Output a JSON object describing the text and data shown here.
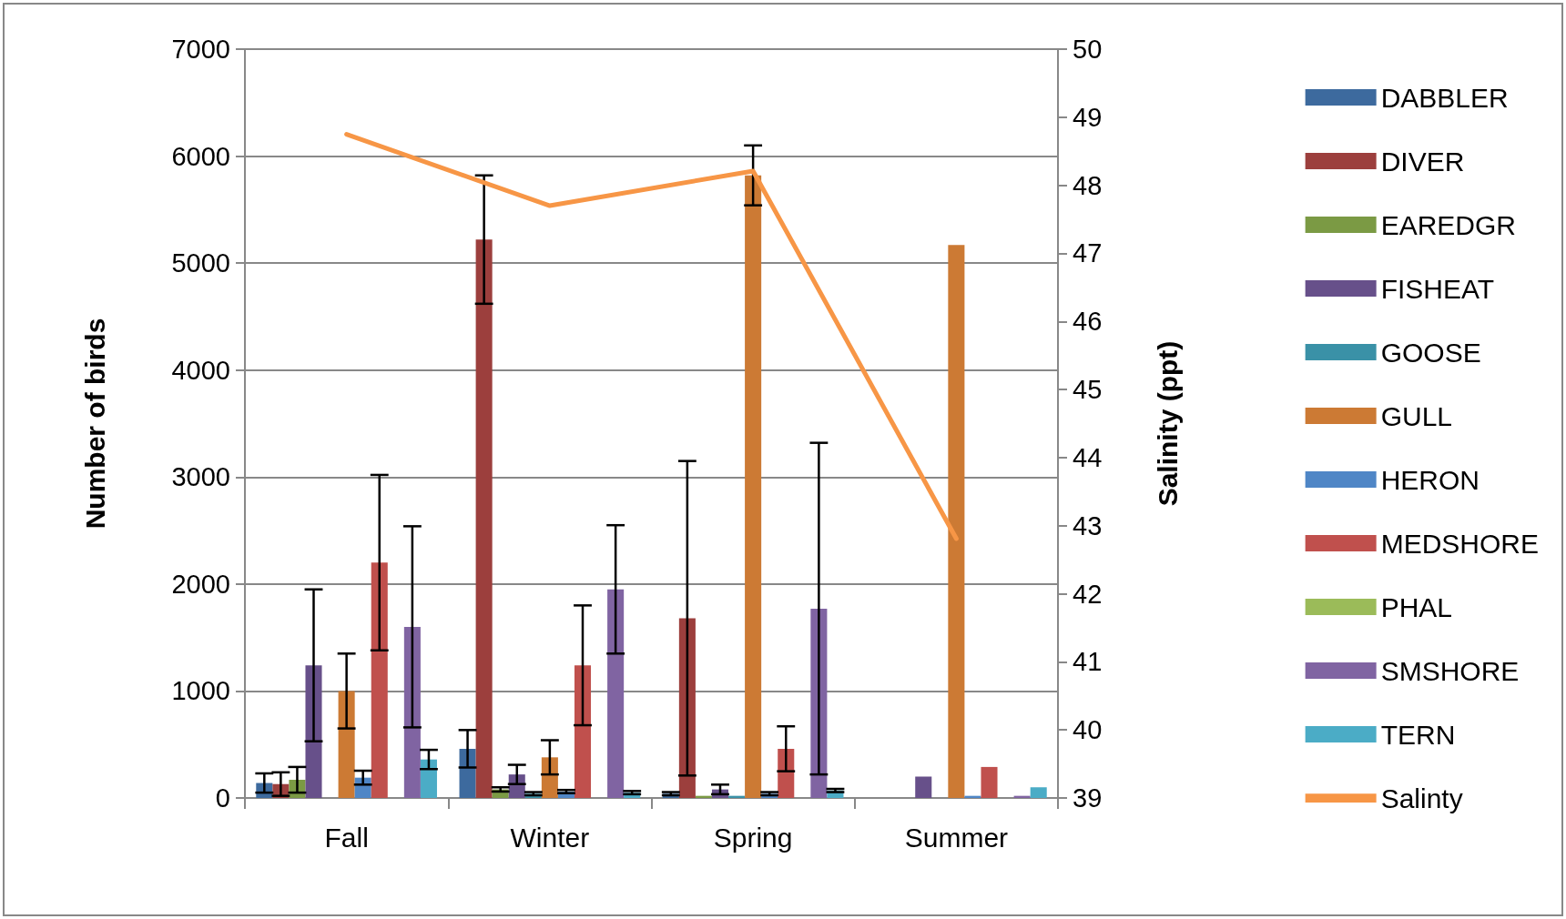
{
  "chart_data": {
    "type": "bar",
    "ylabel": "Number of birds",
    "y2label": "Salinity (ppt)",
    "categories": [
      "Fall",
      "Winter",
      "Spring",
      "Summer"
    ],
    "series": [
      {
        "name": "DABBLER",
        "color": "#3d6a9e",
        "values": [
          140,
          460,
          40,
          0
        ],
        "errors": [
          90,
          175,
          15,
          null
        ]
      },
      {
        "name": "DIVER",
        "color": "#9c3f3d",
        "values": [
          130,
          5220,
          1680,
          0
        ],
        "errors": [
          110,
          600,
          1470,
          null
        ]
      },
      {
        "name": "EAREDGR",
        "color": "#7b9a44",
        "values": [
          170,
          80,
          20,
          0
        ],
        "errors": [
          120,
          20,
          null,
          null
        ]
      },
      {
        "name": "FISHEAT",
        "color": "#67508a",
        "values": [
          1240,
          220,
          80,
          200
        ],
        "errors": [
          710,
          90,
          45,
          null
        ]
      },
      {
        "name": "GOOSE",
        "color": "#3a91a7",
        "values": [
          0,
          40,
          20,
          0
        ],
        "errors": [
          null,
          15,
          null,
          null
        ]
      },
      {
        "name": "GULL",
        "color": "#cc7a34",
        "values": [
          1000,
          380,
          5820,
          5170
        ],
        "errors": [
          350,
          160,
          280,
          null
        ]
      },
      {
        "name": "HERON",
        "color": "#4f86c6",
        "values": [
          190,
          60,
          40,
          20
        ],
        "errors": [
          65,
          15,
          15,
          null
        ]
      },
      {
        "name": "MEDSHORE",
        "color": "#c0504d",
        "values": [
          2200,
          1240,
          460,
          290
        ],
        "errors": [
          820,
          560,
          210,
          null
        ]
      },
      {
        "name": "PHAL",
        "color": "#9bbb59",
        "values": [
          0,
          0,
          0,
          0
        ]
      },
      {
        "name": "SMSHORE",
        "color": "#8064a2",
        "values": [
          1600,
          1950,
          1770,
          20
        ],
        "errors": [
          940,
          600,
          1550,
          null
        ]
      },
      {
        "name": "TERN",
        "color": "#4bacc6",
        "values": [
          360,
          50,
          70,
          100
        ],
        "errors": [
          90,
          15,
          15,
          null
        ]
      },
      {
        "name": "Salinty",
        "type": "line",
        "axis": "y2",
        "color": "#f79646",
        "values": [
          48.75,
          47.7,
          48.21,
          42.81
        ]
      }
    ],
    "ylim": [
      0,
      7000
    ],
    "yticks": [
      0,
      1000,
      2000,
      3000,
      4000,
      5000,
      6000,
      7000
    ],
    "y2lim": [
      39,
      50
    ],
    "y2ticks": [
      39,
      40,
      41,
      42,
      43,
      44,
      45,
      46,
      47,
      48,
      49,
      50
    ],
    "grid": "y",
    "legend": "right",
    "marker": "none"
  }
}
